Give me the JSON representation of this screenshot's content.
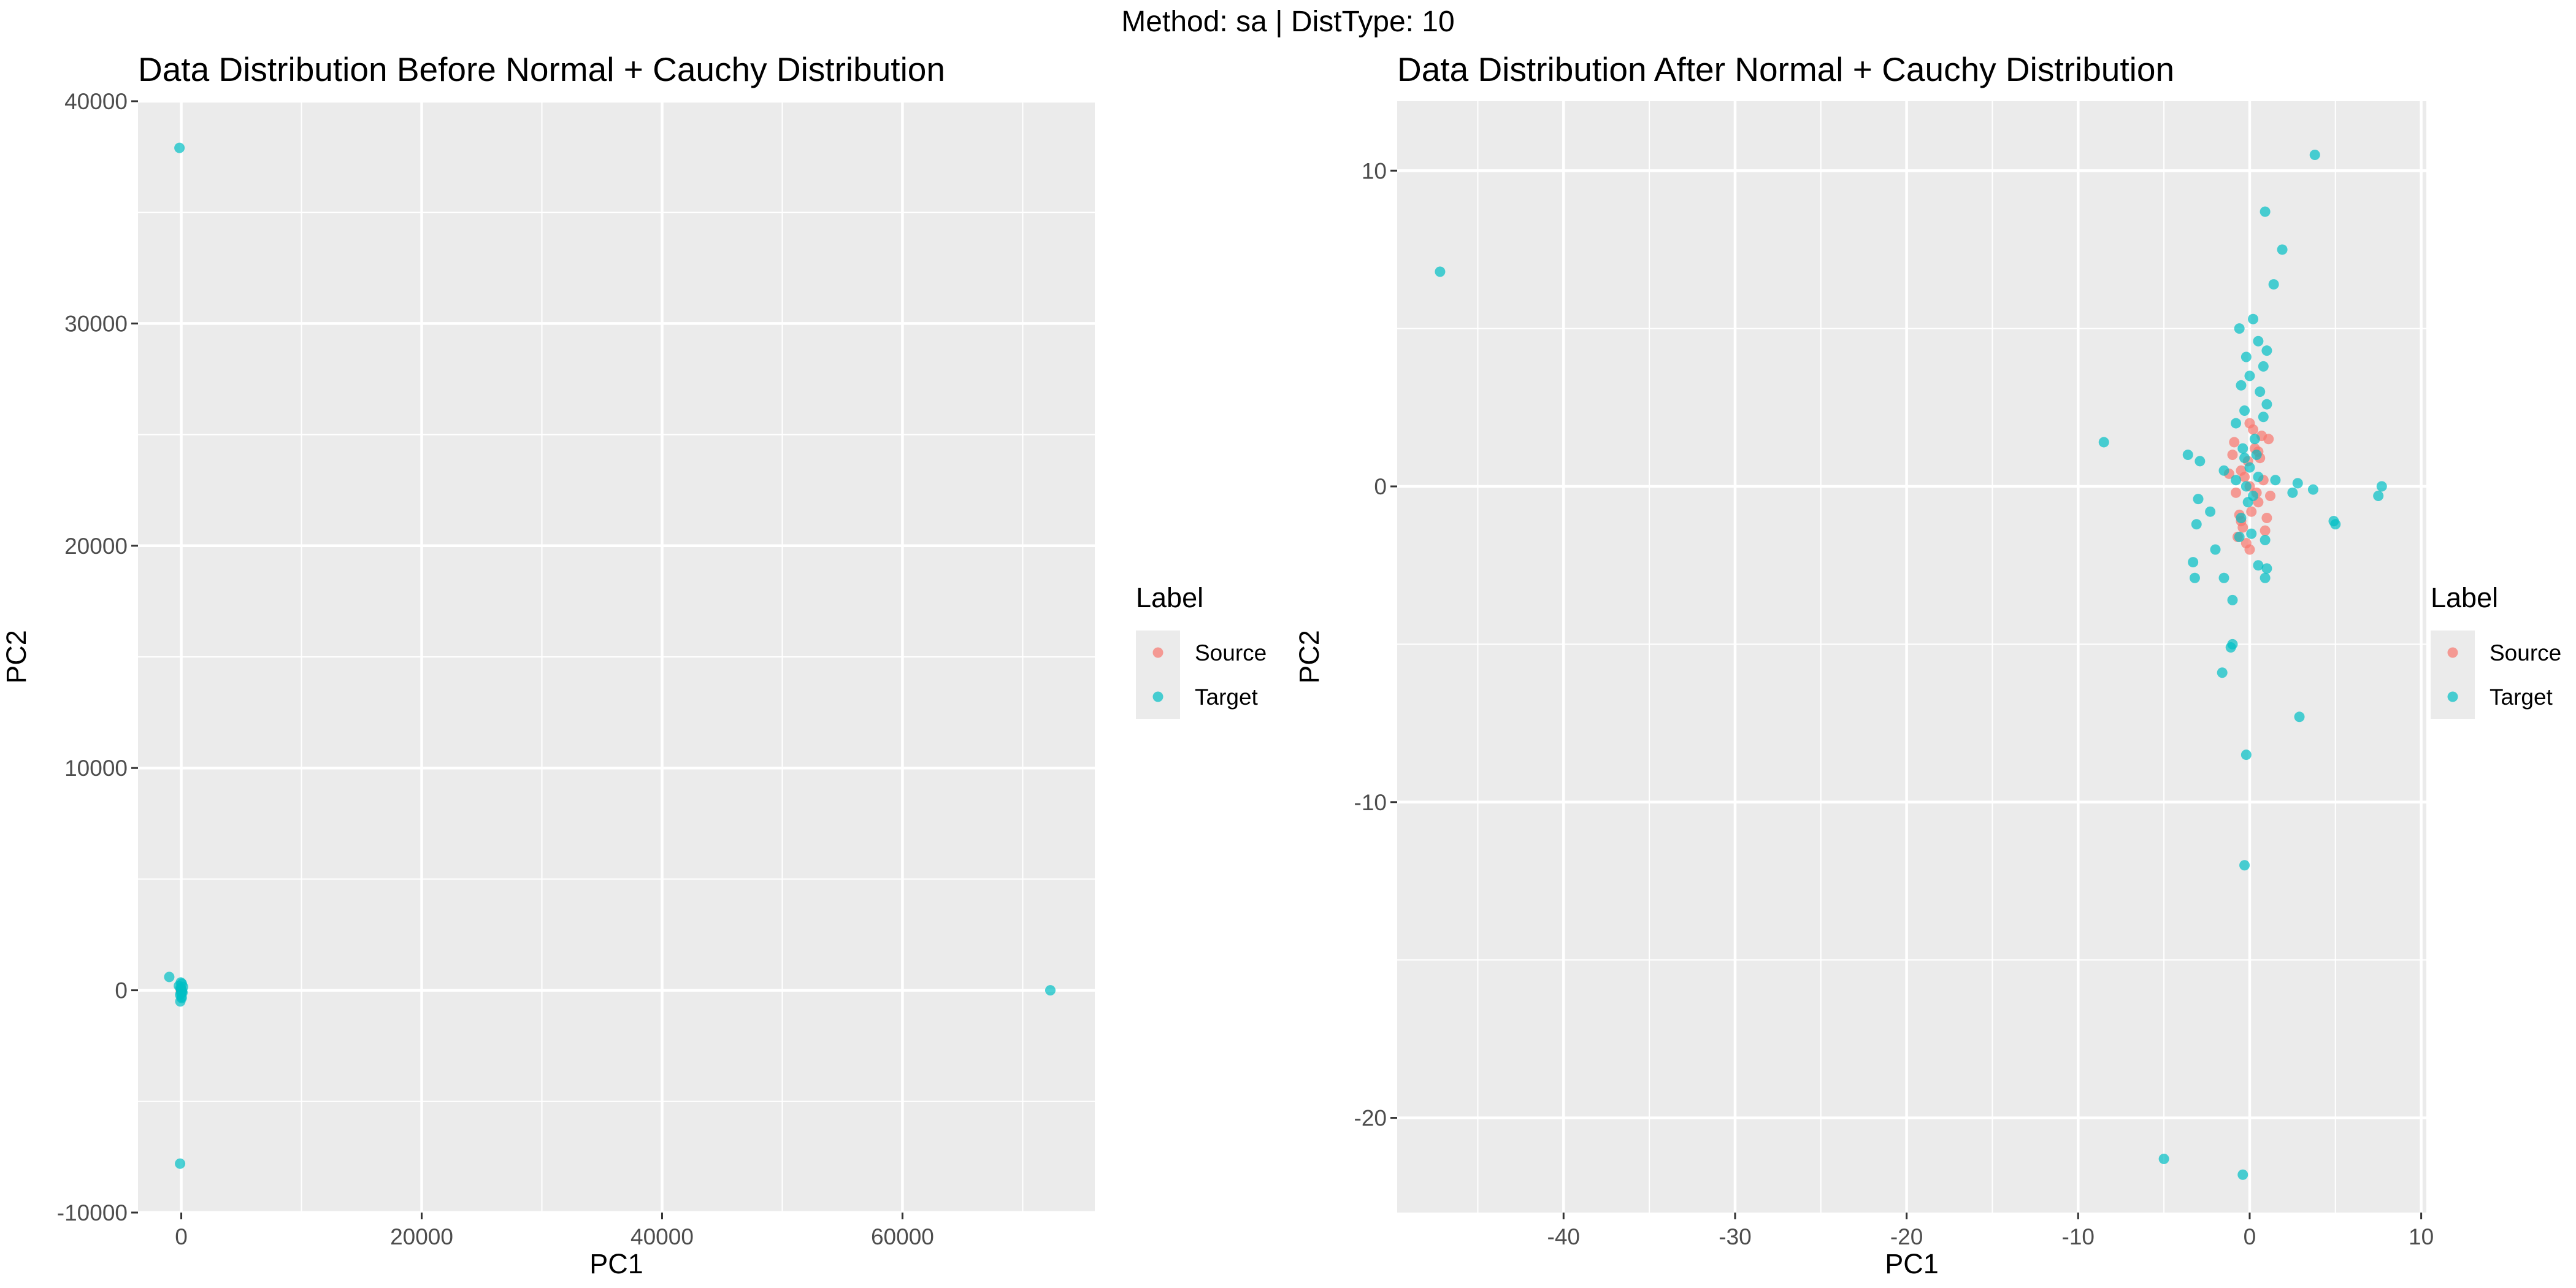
{
  "figure_title": "Method: sa | DistType: 10",
  "colors": {
    "source": "#F8766D",
    "target": "#00BFC4",
    "panel_bg": "#EBEBEB",
    "grid": "#FFFFFF"
  },
  "chart_data": [
    {
      "type": "scatter",
      "title": "Data Distribution Before Normal + Cauchy Distribution",
      "xlabel": "PC1",
      "ylabel": "PC2",
      "xlim": [
        -3600,
        76000
      ],
      "ylim": [
        -10000,
        40000
      ],
      "xticks": [
        0,
        20000,
        40000,
        60000
      ],
      "xtick_labels": [
        "0",
        "20000",
        "40000",
        "60000"
      ],
      "yticks": [
        -10000,
        0,
        10000,
        20000,
        30000,
        40000
      ],
      "ytick_labels": [
        "-10000",
        "0",
        "10000",
        "20000",
        "30000",
        "40000"
      ],
      "grid": true,
      "legend": {
        "title": "Label",
        "position": "right",
        "entries": [
          "Source",
          "Target"
        ]
      },
      "series": [
        {
          "name": "Source",
          "points": [
            [
              0,
              0
            ],
            [
              -50,
              40
            ],
            [
              40,
              -30
            ],
            [
              20,
              60
            ],
            [
              -30,
              -50
            ]
          ]
        },
        {
          "name": "Target",
          "points": [
            [
              -150,
              37900
            ],
            [
              72300,
              0
            ],
            [
              -1000,
              600
            ],
            [
              -100,
              -7800
            ],
            [
              -80,
              -500
            ],
            [
              20,
              -300
            ],
            [
              50,
              300
            ],
            [
              -60,
              100
            ],
            [
              0,
              0
            ],
            [
              100,
              -100
            ],
            [
              -200,
              200
            ],
            [
              150,
              150
            ],
            [
              -100,
              -200
            ],
            [
              60,
              -50
            ],
            [
              -30,
              50
            ],
            [
              0,
              -150
            ],
            [
              -40,
              350
            ],
            [
              30,
              -350
            ]
          ]
        }
      ]
    },
    {
      "type": "scatter",
      "title": "Data Distribution After Normal + Cauchy Distribution",
      "xlabel": "PC1",
      "ylabel": "PC2",
      "xlim": [
        -49.7,
        10.3
      ],
      "ylim": [
        -23,
        12.2
      ],
      "xticks": [
        -40,
        -30,
        -20,
        -10,
        0,
        10
      ],
      "xtick_labels": [
        "-40",
        "-30",
        "-20",
        "-10",
        "0",
        "10"
      ],
      "yticks": [
        -20,
        -10,
        0,
        10
      ],
      "ytick_labels": [
        "-20",
        "-10",
        "0",
        "10"
      ],
      "grid": true,
      "legend": {
        "title": "Label",
        "position": "right",
        "entries": [
          "Source",
          "Target"
        ]
      },
      "series": [
        {
          "name": "Source",
          "points": [
            [
              0,
              0
            ],
            [
              -0.5,
              0.5
            ],
            [
              0.5,
              -0.5
            ],
            [
              0.3,
              1.2
            ],
            [
              -0.4,
              -1.3
            ],
            [
              0.8,
              0.2
            ],
            [
              -0.8,
              -0.2
            ],
            [
              0.2,
              1.8
            ],
            [
              -0.2,
              -1.8
            ],
            [
              0.6,
              0.9
            ],
            [
              -0.6,
              -0.9
            ],
            [
              1.1,
              1.5
            ],
            [
              -1.0,
              1.0
            ],
            [
              1.0,
              -1.0
            ],
            [
              0.0,
              2.0
            ],
            [
              0.0,
              -2.0
            ],
            [
              -0.3,
              0.3
            ],
            [
              0.4,
              -0.2
            ],
            [
              0.7,
              1.6
            ],
            [
              -0.7,
              -1.6
            ],
            [
              1.2,
              -0.3
            ],
            [
              -1.2,
              0.4
            ],
            [
              0.1,
              -0.8
            ],
            [
              -0.1,
              0.8
            ],
            [
              0.9,
              -1.4
            ],
            [
              -0.9,
              1.4
            ],
            [
              0.5,
              1.1
            ],
            [
              -0.5,
              -1.1
            ]
          ]
        },
        {
          "name": "Target",
          "points": [
            [
              -47.2,
              6.8
            ],
            [
              3.8,
              10.5
            ],
            [
              0.9,
              8.7
            ],
            [
              1.9,
              7.5
            ],
            [
              1.4,
              6.4
            ],
            [
              -0.6,
              5.0
            ],
            [
              0.2,
              5.3
            ],
            [
              0.5,
              4.6
            ],
            [
              1.0,
              4.3
            ],
            [
              -0.2,
              4.1
            ],
            [
              0.8,
              3.8
            ],
            [
              0.0,
              3.5
            ],
            [
              0.6,
              3.0
            ],
            [
              -0.5,
              3.2
            ],
            [
              1.0,
              2.6
            ],
            [
              -0.3,
              2.4
            ],
            [
              0.8,
              2.2
            ],
            [
              -0.8,
              2.0
            ],
            [
              0.3,
              1.5
            ],
            [
              -0.4,
              1.2
            ],
            [
              -8.5,
              1.4
            ],
            [
              -3.6,
              1.0
            ],
            [
              -2.9,
              0.8
            ],
            [
              -1.5,
              0.5
            ],
            [
              -0.8,
              0.2
            ],
            [
              -0.2,
              0.0
            ],
            [
              0.5,
              0.3
            ],
            [
              1.5,
              0.2
            ],
            [
              2.5,
              -0.2
            ],
            [
              2.8,
              0.1
            ],
            [
              3.7,
              -0.1
            ],
            [
              5.0,
              -1.2
            ],
            [
              4.9,
              -1.1
            ],
            [
              7.5,
              -0.3
            ],
            [
              7.7,
              0.0
            ],
            [
              -3.0,
              -0.4
            ],
            [
              -2.3,
              -0.8
            ],
            [
              -3.1,
              -1.2
            ],
            [
              -3.3,
              -2.4
            ],
            [
              -3.2,
              -2.9
            ],
            [
              -2.0,
              -2.0
            ],
            [
              -1.5,
              -2.9
            ],
            [
              -1.0,
              -3.6
            ],
            [
              0.5,
              -2.5
            ],
            [
              0.1,
              -1.5
            ],
            [
              -0.5,
              -1.0
            ],
            [
              0.9,
              -1.7
            ],
            [
              0.9,
              -2.9
            ],
            [
              1.0,
              -2.6
            ],
            [
              -1.0,
              -5.0
            ],
            [
              -1.1,
              -5.1
            ],
            [
              -1.6,
              -5.9
            ],
            [
              2.9,
              -7.3
            ],
            [
              -0.2,
              -8.5
            ],
            [
              -0.3,
              -12.0
            ],
            [
              -5.0,
              -21.3
            ],
            [
              -0.4,
              -21.8
            ],
            [
              0.0,
              0.6
            ],
            [
              -0.1,
              -0.5
            ],
            [
              0.4,
              1.0
            ],
            [
              -0.6,
              -1.6
            ],
            [
              0.2,
              -0.3
            ],
            [
              -0.3,
              0.9
            ]
          ]
        }
      ]
    }
  ]
}
